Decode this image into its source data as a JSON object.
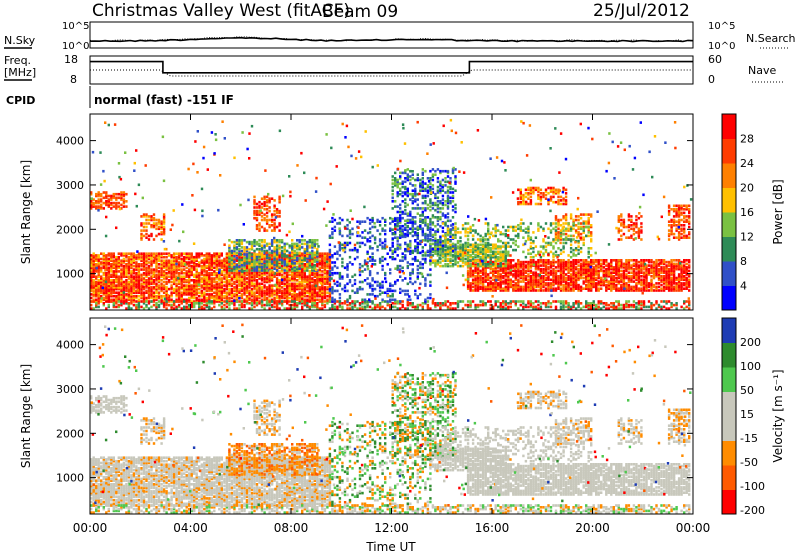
{
  "header": {
    "title": "Christmas Valley West (fitACF)",
    "beam": "Beam 09",
    "date": "25/Jul/2012"
  },
  "panel_labels": {
    "nsky": "N.Sky",
    "nsearch": "N.Search",
    "freq_line1": "Freq.",
    "freq_line2": "[MHz]",
    "nave": "Nave",
    "cpid": "CPID",
    "mode": "normal (fast) -151 IF"
  },
  "colors": {
    "power": [
      "#0000ff",
      "#3050c8",
      "#2e8b57",
      "#7ac142",
      "#ffc000",
      "#ff8000",
      "#ff3c00",
      "#ff0000"
    ],
    "velocity": [
      "#ff0000",
      "#ff5a00",
      "#ff8c00",
      "#c8c8bc",
      "#c8c8bc",
      "#4ec84e",
      "#2e8b2e",
      "#1e3cb4"
    ]
  },
  "chart_data": [
    {
      "type": "line",
      "title": "",
      "series": [
        {
          "name": "N.Sky",
          "style": "solid"
        },
        {
          "name": "N.Search",
          "style": "dotted"
        }
      ],
      "ylabel_left": "N.Sky",
      "ylabel_right": "N.Search",
      "yticks_left": [
        "10^5",
        "10^0"
      ],
      "yticks_right": [
        "10^5",
        "10^0"
      ]
    },
    {
      "type": "line",
      "title": "",
      "series": [
        {
          "name": "Freq.",
          "style": "solid",
          "x": [
            0,
            2.9,
            2.9,
            15.1,
            15.1,
            24
          ],
          "values": [
            16,
            16,
            12,
            12,
            16,
            16
          ]
        },
        {
          "name": "Nave",
          "style": "dotted"
        }
      ],
      "ylabel_left": "Freq. [MHz]",
      "ylabel_right": "Nave",
      "yticks_left": [
        "18",
        "8"
      ],
      "yticks_right": [
        "60",
        "0"
      ],
      "ylim_left": [
        8,
        18
      ],
      "ylim_right": [
        0,
        60
      ]
    },
    {
      "type": "heatmap",
      "name": "power",
      "xlabel": "",
      "ylabel": "Slant Range [km]",
      "xlim": [
        0,
        24
      ],
      "ylim": [
        180,
        4600
      ],
      "yticks": [
        1000,
        2000,
        3000,
        4000
      ],
      "colorbar": {
        "label": "Power [dB]",
        "ticks": [
          "4",
          "8",
          "12",
          "16",
          "20",
          "24",
          "28"
        ]
      }
    },
    {
      "type": "heatmap",
      "name": "velocity",
      "xlabel": "Time UT",
      "ylabel": "Slant Range [km]",
      "xlim": [
        0,
        24
      ],
      "ylim": [
        180,
        4600
      ],
      "yticks": [
        1000,
        2000,
        3000,
        4000
      ],
      "xticks": [
        "00:00",
        "04:00",
        "08:00",
        "12:00",
        "16:00",
        "20:00",
        "00:00"
      ],
      "colorbar": {
        "label": "Velocity [m s⁻¹]",
        "ticks": [
          "200",
          "100",
          "50",
          "15",
          "-15",
          "-50",
          "-100",
          "-200"
        ]
      }
    }
  ]
}
